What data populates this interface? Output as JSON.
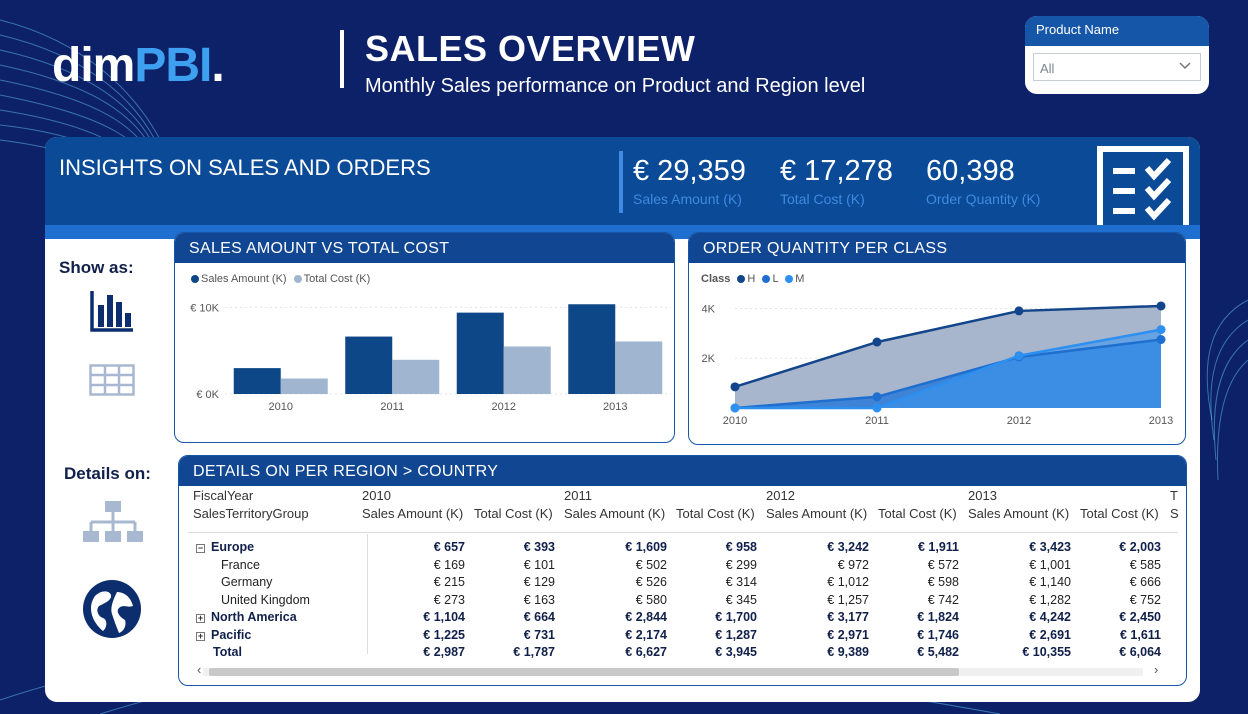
{
  "header": {
    "logo_main": "dim",
    "logo_accent": "PBI",
    "logo_dot": ".",
    "title": "SALES OVERVIEW",
    "subtitle": "Monthly Sales performance on Product and Region level"
  },
  "slicer": {
    "label": "Product Name",
    "selected": "All",
    "chevron": "chevron-down-icon"
  },
  "insights": {
    "title": "INSIGHTS ON SALES AND ORDERS",
    "kpis": [
      {
        "value": "€ 29,359",
        "label": "Sales Amount (K)"
      },
      {
        "value": "€ 17,278",
        "label": "Total Cost (K)"
      },
      {
        "value": "60,398",
        "label": "Order Quantity (K)"
      }
    ],
    "icon": "checklist-icon"
  },
  "side": {
    "show_as": "Show as:",
    "details_on": "Details on:",
    "icons": [
      "bar-chart-icon",
      "table-icon",
      "hierarchy-icon",
      "globe-icon"
    ]
  },
  "colors": {
    "background": "#0d2169",
    "card_header": "#114692",
    "sales": "#0d4787",
    "cost": "#9fb5d0",
    "class_h": "#12458a",
    "class_l": "#1e6fd0",
    "class_m": "#2d8ff0"
  },
  "chart_data": [
    {
      "type": "bar",
      "title": "SALES AMOUNT VS TOTAL COST",
      "categories": [
        "2010",
        "2011",
        "2012",
        "2013"
      ],
      "series": [
        {
          "name": "Sales Amount (K)",
          "values": [
            2987,
            6627,
            9389,
            10355
          ]
        },
        {
          "name": "Total Cost (K)",
          "values": [
            1787,
            3945,
            5482,
            6064
          ]
        }
      ],
      "yticks": [
        "€ 0K",
        "€ 10K"
      ],
      "ylim": [
        0,
        10500
      ],
      "legend_position": "top-left",
      "grid": false
    },
    {
      "type": "area",
      "title": "ORDER QUANTITY PER CLASS",
      "legend_title": "Class",
      "categories": [
        "2010",
        "2011",
        "2012",
        "2013"
      ],
      "series": [
        {
          "name": "H",
          "values": [
            850,
            2650,
            3900,
            4100
          ]
        },
        {
          "name": "L",
          "values": [
            0,
            450,
            2050,
            2750
          ]
        },
        {
          "name": "M",
          "values": [
            0,
            0,
            2100,
            3150
          ]
        }
      ],
      "yticks": [
        "2K",
        "4K"
      ],
      "ylim": [
        0,
        4500
      ],
      "legend_position": "top-left",
      "grid": true
    }
  ],
  "table": {
    "title": "DETAILS ON PER REGION > COUNTRY",
    "row_header_1": "FiscalYear",
    "row_header_2": "SalesTerritoryGroup",
    "years": [
      "2010",
      "2011",
      "2012",
      "2013",
      "T"
    ],
    "col_headers": [
      "Sales Amount (K)",
      "Total Cost (K)",
      "Sales Amount (K)",
      "Total Cost (K)",
      "Sales Amount (K)",
      "Total Cost (K)",
      "Sales Amount (K)",
      "Total Cost (K)",
      "S"
    ],
    "rows": [
      {
        "label": "Europe",
        "level": 0,
        "expander": "⊟",
        "bold": true,
        "values": [
          "€ 657",
          "€ 393",
          "€ 1,609",
          "€ 958",
          "€ 3,242",
          "€ 1,911",
          "€ 3,423",
          "€ 2,003"
        ]
      },
      {
        "label": "France",
        "level": 1,
        "expander": "",
        "bold": false,
        "values": [
          "€ 169",
          "€ 101",
          "€ 502",
          "€ 299",
          "€ 972",
          "€ 572",
          "€ 1,001",
          "€ 585"
        ]
      },
      {
        "label": "Germany",
        "level": 1,
        "expander": "",
        "bold": false,
        "values": [
          "€ 215",
          "€ 129",
          "€ 526",
          "€ 314",
          "€ 1,012",
          "€ 598",
          "€ 1,140",
          "€ 666"
        ]
      },
      {
        "label": "United Kingdom",
        "level": 1,
        "expander": "",
        "bold": false,
        "values": [
          "€ 273",
          "€ 163",
          "€ 580",
          "€ 345",
          "€ 1,257",
          "€ 742",
          "€ 1,282",
          "€ 752"
        ]
      },
      {
        "label": "North America",
        "level": 0,
        "expander": "⊞",
        "bold": true,
        "values": [
          "€ 1,104",
          "€ 664",
          "€ 2,844",
          "€ 1,700",
          "€ 3,177",
          "€ 1,824",
          "€ 4,242",
          "€ 2,450"
        ]
      },
      {
        "label": "Pacific",
        "level": 0,
        "expander": "⊞",
        "bold": true,
        "values": [
          "€ 1,225",
          "€ 731",
          "€ 2,174",
          "€ 1,287",
          "€ 2,971",
          "€ 1,746",
          "€ 2,691",
          "€ 1,611"
        ]
      },
      {
        "label": "Total",
        "level": 0,
        "expander": "",
        "bold": true,
        "values": [
          "€ 2,987",
          "€ 1,787",
          "€ 6,627",
          "€ 3,945",
          "€ 9,389",
          "€ 5,482",
          "€ 10,355",
          "€ 6,064"
        ]
      }
    ],
    "scroll_left": "‹",
    "scroll_right": "›"
  }
}
